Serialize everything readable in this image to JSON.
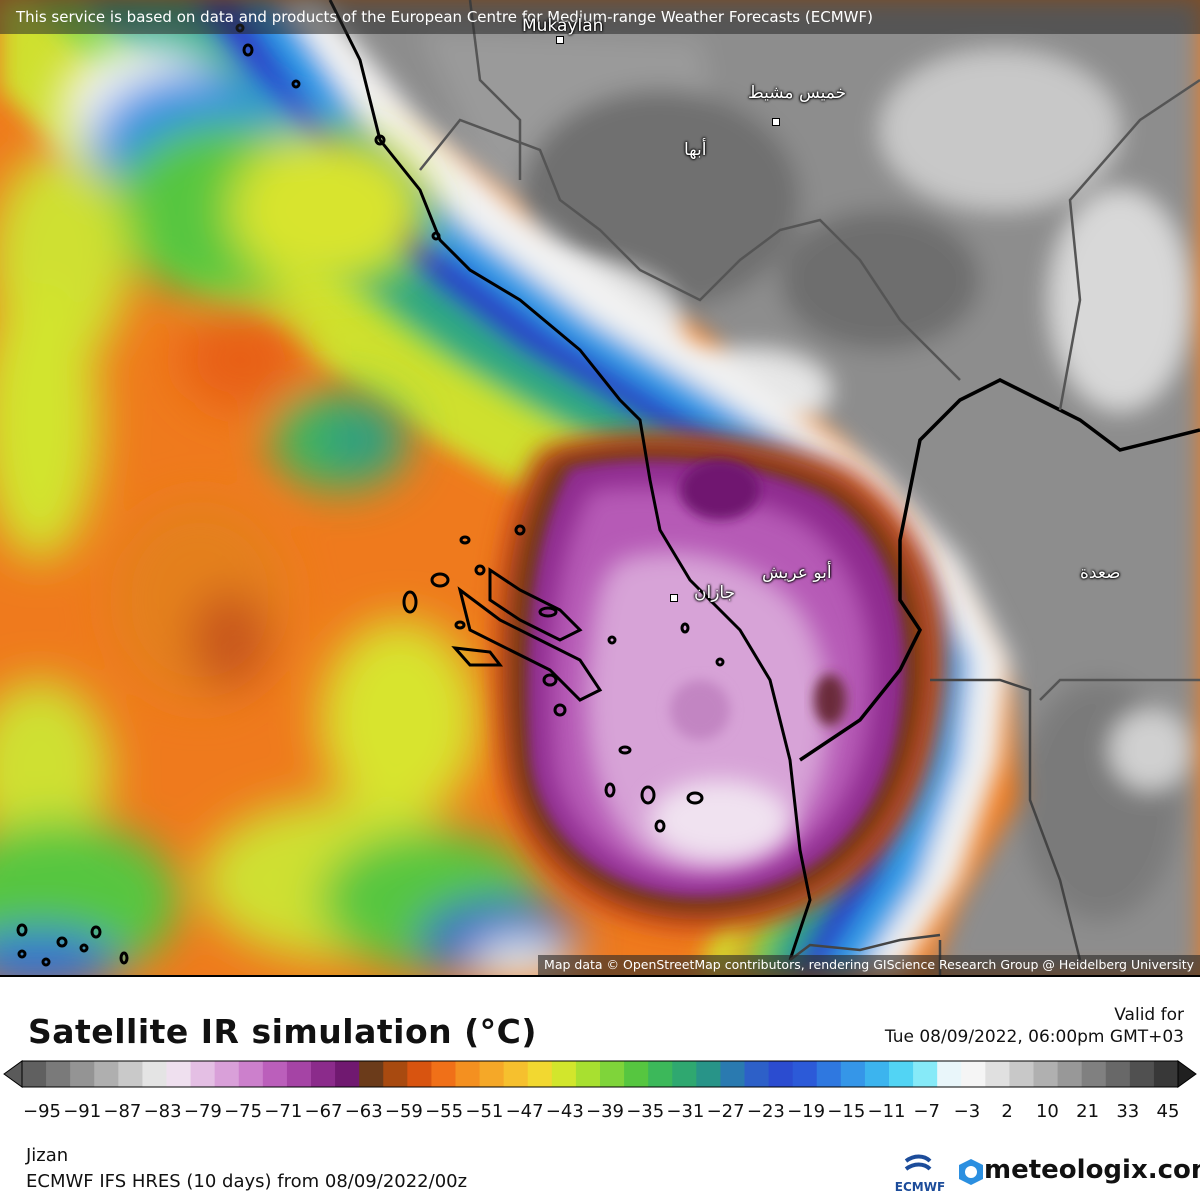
{
  "map": {
    "attribution_top": "This service is based on data and products of the European Centre for Medium-range Weather Forecasts (ECMWF)",
    "attribution_bottom": "Map data © OpenStreetMap contributors, rendering GIScience Research Group @ Heidelberg University",
    "cities": [
      {
        "name": "Mukaylan",
        "key": "mukaylan"
      },
      {
        "name": "خميس مشيط",
        "key": "khamis"
      },
      {
        "name": "أبها",
        "key": "abha"
      },
      {
        "name": "أبو عريش",
        "key": "abuarish"
      },
      {
        "name": "جازان",
        "key": "jizan"
      },
      {
        "name": "صعدة",
        "key": "saada"
      }
    ]
  },
  "legend": {
    "title": "Satellite IR simulation (°C)",
    "valid_label": "Valid for",
    "valid_time": "Tue 08/09/2022, 06:00pm GMT+03",
    "ticks": [
      "−95",
      "−91",
      "−87",
      "−83",
      "−79",
      "−75",
      "−71",
      "−67",
      "−63",
      "−59",
      "−55",
      "−51",
      "−47",
      "−43",
      "−39",
      "−35",
      "−31",
      "−27",
      "−23",
      "−19",
      "−15",
      "−11",
      "−7",
      "−3",
      "2",
      "10",
      "21",
      "33",
      "45"
    ],
    "location": "Jizan",
    "model": "ECMWF IFS HRES (10 days) from 08/09/2022/00z",
    "ecmwf_label": "ECMWF",
    "brand": "meteologix.com",
    "colorbar": [
      "#606060",
      "#7a7a7a",
      "#949494",
      "#afafaf",
      "#c9c9c9",
      "#e4e4e4",
      "#efe0ef",
      "#e4bfe4",
      "#d9a0d9",
      "#cc80cc",
      "#bb5fbb",
      "#a544a5",
      "#8b2b8b",
      "#701970",
      "#6b3b1a",
      "#a84a10",
      "#d85410",
      "#f07018",
      "#f49020",
      "#f5a828",
      "#f6c02e",
      "#f2d830",
      "#d2e62c",
      "#a8e030",
      "#7fd43a",
      "#56c640",
      "#3cb85a",
      "#2fa870",
      "#289488",
      "#2a7ab0",
      "#2d60c8",
      "#2b4cd0",
      "#2c5ad8",
      "#2f78e0",
      "#3596e8",
      "#3cb4ee",
      "#52d4f4",
      "#86eaf8",
      "#e9f6fa",
      "#f5f5f5",
      "#e0e0e0",
      "#c8c8c8",
      "#b0b0b0",
      "#989898",
      "#808080",
      "#686868",
      "#505050",
      "#383838"
    ]
  }
}
